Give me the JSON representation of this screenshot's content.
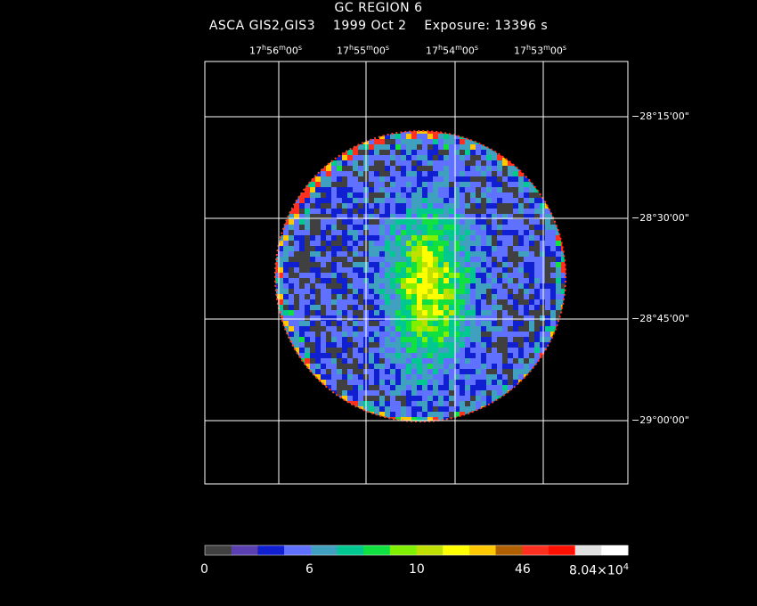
{
  "header": {
    "title": "GC REGION 6",
    "instrument": "ASCA GIS2,GIS3",
    "date": "1999 Oct  2",
    "exposure": "Exposure: 13396 s"
  },
  "axes": {
    "ra_ticks": [
      {
        "h": "17",
        "m": "56",
        "s": "00"
      },
      {
        "h": "17",
        "m": "55",
        "s": "00"
      },
      {
        "h": "17",
        "m": "54",
        "s": "00"
      },
      {
        "h": "17",
        "m": "53",
        "s": "00"
      }
    ],
    "dec_ticks": [
      "−28°15'00\"",
      "−28°30'00\"",
      "−28°45'00\"",
      "−29°00'00\""
    ]
  },
  "colorbar": {
    "colors": [
      "#404040",
      "#5a3fb0",
      "#1020d0",
      "#6070ff",
      "#40a0c0",
      "#00c890",
      "#10e040",
      "#80f000",
      "#c0e000",
      "#ffff00",
      "#ffc800",
      "#b06000",
      "#ff3020",
      "#ff1000",
      "#e0e0e0",
      "#ffffff"
    ],
    "labels": [
      "0",
      "6",
      "10",
      "46"
    ],
    "max_label": "8.04×10",
    "max_exp": "4"
  },
  "image": {
    "description_colors": {
      "background": "#000000",
      "grid": "#ffffff"
    }
  }
}
